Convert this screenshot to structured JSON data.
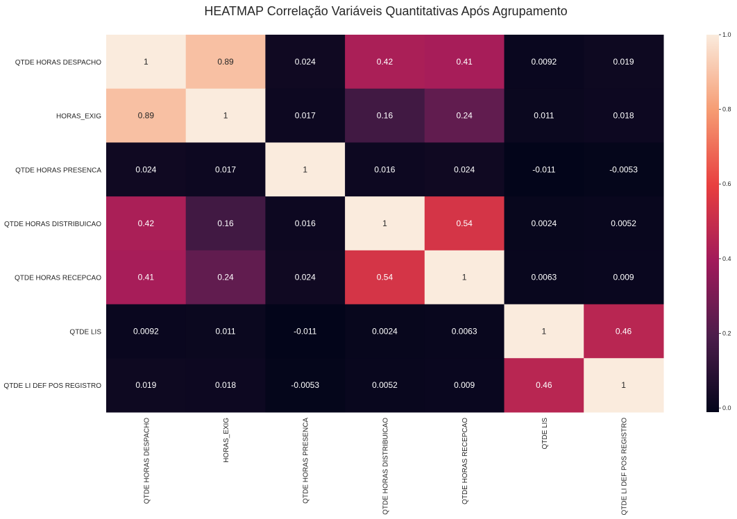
{
  "chart_data": {
    "type": "heatmap",
    "title": "HEATMAP Correlação Variáveis Quantitativas Após Agrupamento",
    "rows": [
      "QTDE HORAS DESPACHO",
      "HORAS_EXIG",
      "QTDE HORAS PRESENCA",
      "QTDE HORAS DISTRIBUICAO",
      "QTDE HORAS RECEPCAO",
      "QTDE LIS",
      "QTDE LI DEF POS REGISTRO"
    ],
    "columns": [
      "QTDE HORAS DESPACHO",
      "HORAS_EXIG",
      "QTDE HORAS PRESENCA",
      "QTDE HORAS DISTRIBUICAO",
      "QTDE HORAS RECEPCAO",
      "QTDE LIS",
      "QTDE LI DEF POS REGISTRO"
    ],
    "values": [
      [
        1,
        0.89,
        0.024,
        0.42,
        0.41,
        0.0092,
        0.019
      ],
      [
        0.89,
        1,
        0.017,
        0.16,
        0.24,
        0.011,
        0.018
      ],
      [
        0.024,
        0.017,
        1,
        0.016,
        0.024,
        -0.011,
        -0.0053
      ],
      [
        0.42,
        0.16,
        0.016,
        1,
        0.54,
        0.0024,
        0.0052
      ],
      [
        0.41,
        0.24,
        0.024,
        0.54,
        1,
        0.0063,
        0.009
      ],
      [
        0.0092,
        0.011,
        -0.011,
        0.0024,
        0.0063,
        1,
        0.46
      ],
      [
        0.019,
        0.018,
        -0.0053,
        0.0052,
        0.009,
        0.46,
        1
      ]
    ],
    "labels": [
      [
        "1",
        "0.89",
        "0.024",
        "0.42",
        "0.41",
        "0.0092",
        "0.019"
      ],
      [
        "0.89",
        "1",
        "0.017",
        "0.16",
        "0.24",
        "0.011",
        "0.018"
      ],
      [
        "0.024",
        "0.017",
        "1",
        "0.016",
        "0.024",
        "-0.011",
        "-0.0053"
      ],
      [
        "0.42",
        "0.16",
        "0.016",
        "1",
        "0.54",
        "0.0024",
        "0.0052"
      ],
      [
        "0.41",
        "0.24",
        "0.024",
        "0.54",
        "1",
        "0.0063",
        "0.009"
      ],
      [
        "0.0092",
        "0.011",
        "-0.011",
        "0.0024",
        "0.0063",
        "1",
        "0.46"
      ],
      [
        "0.019",
        "0.018",
        "-0.0053",
        "0.0052",
        "0.009",
        "0.46",
        "1"
      ]
    ],
    "colorbar": {
      "vmin": -0.011,
      "vmax": 1,
      "ticks": [
        0.0,
        0.2,
        0.4,
        0.6,
        0.8,
        1.0
      ],
      "tick_labels": [
        "0.0",
        "0.2",
        "0.4",
        "0.6",
        "0.8",
        "1.0"
      ],
      "colormap": "rocket",
      "colors": [
        "#03051a",
        "#4c1d4b",
        "#a11a5b",
        "#e83f3f",
        "#f69c73",
        "#faebdd"
      ]
    }
  }
}
